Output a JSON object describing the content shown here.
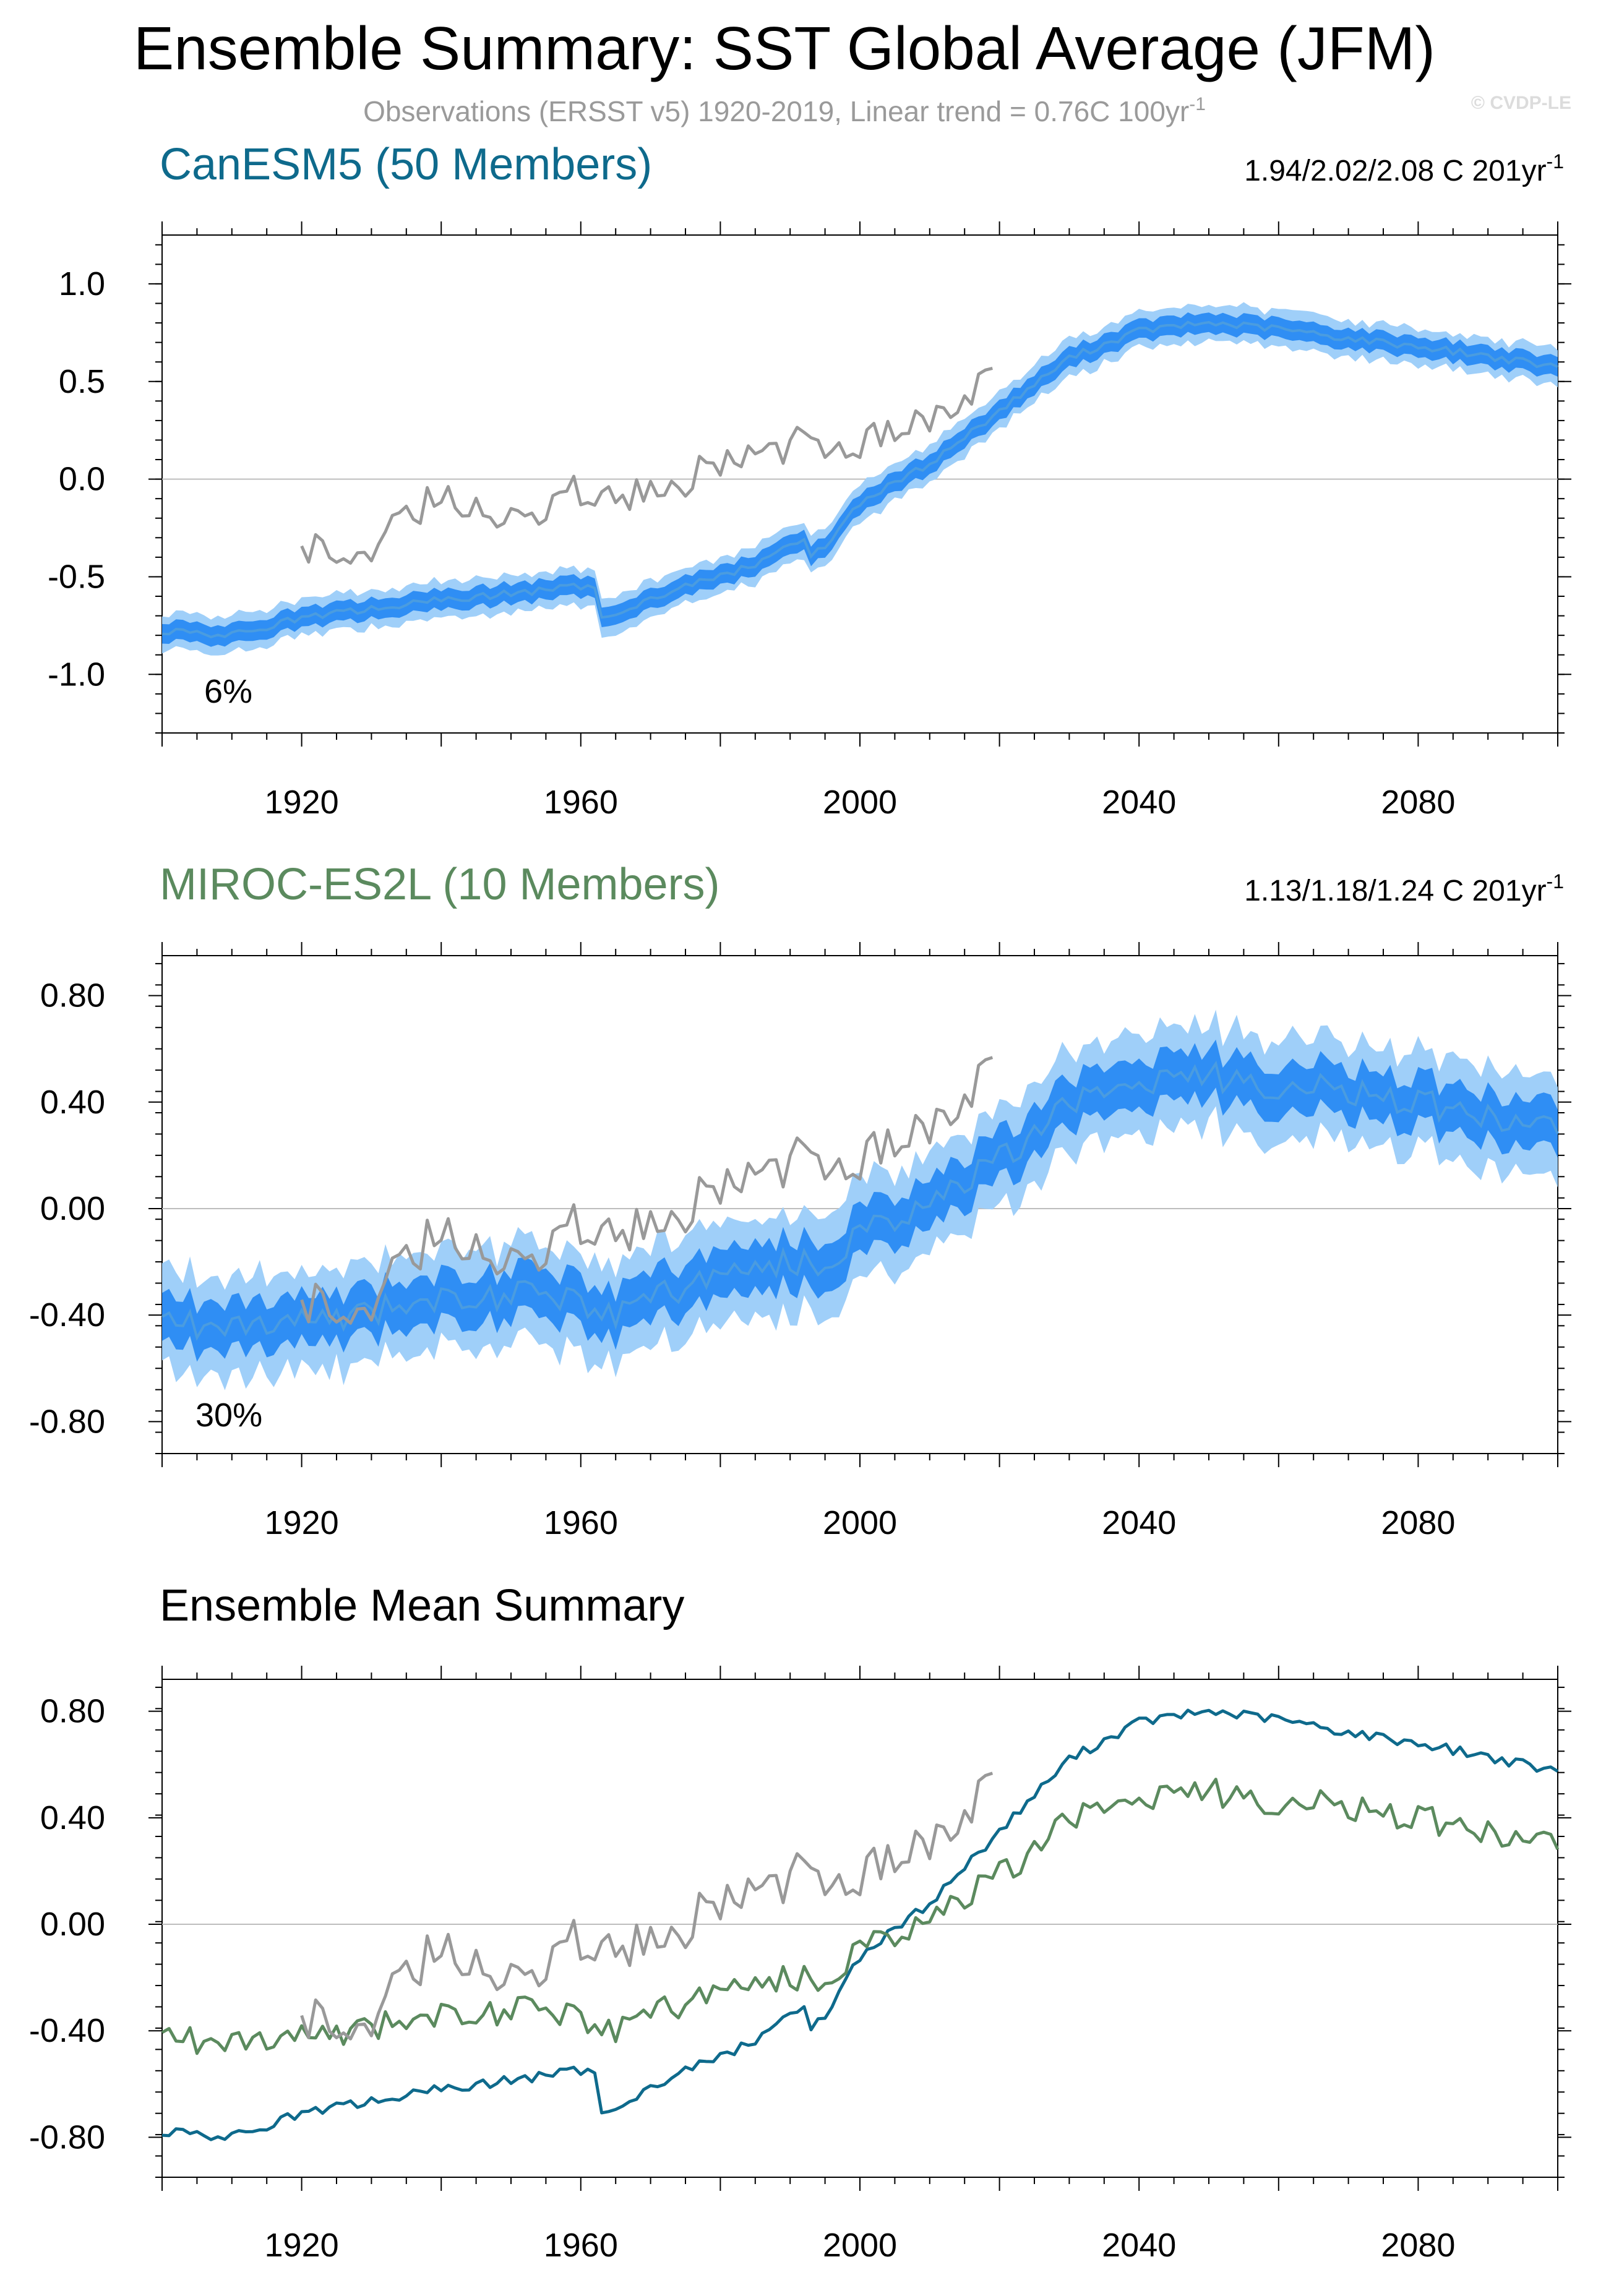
{
  "header": {
    "title": "Ensemble Summary: SST Global Average (JFM)",
    "subtitle": "Observations (ERSST v5) 1920-2019, Linear trend = 0.76C 100yr",
    "subtitle_sup": "-1",
    "credit": "© CVDP-LE"
  },
  "colors": {
    "canesm5": "#0e6a8c",
    "miroc": "#5b8a5e",
    "obs": "#999999",
    "ensemble_dark": "#2f8ef4",
    "ensemble_light": "#9fcff9",
    "ensemble_mean_line": "#4a9ce0"
  },
  "panels": [
    {
      "title": "CanESM5 (50 Members)",
      "trend": "1.94/2.02/2.08 C 201yr",
      "trend_sup": "-1",
      "percent": "6%"
    },
    {
      "title": "MIROC-ES2L (10 Members)",
      "trend": "1.13/1.18/1.24 C 201yr",
      "trend_sup": "-1",
      "percent": "30%"
    },
    {
      "title": "Ensemble Mean Summary"
    }
  ],
  "chart_data": [
    {
      "type": "area",
      "title": "CanESM5 (50 Members)",
      "x_ticks": [
        "1920",
        "1960",
        "2000",
        "2040",
        "2080"
      ],
      "y_ticks": [
        "1.0",
        "0.5",
        "0.0",
        "-0.5",
        "-1.0"
      ],
      "xlim": [
        1900,
        2100
      ],
      "ylim": [
        -1.3,
        1.25
      ],
      "ensemble_mean_knots": [
        [
          1900,
          -0.78
        ],
        [
          1910,
          -0.8
        ],
        [
          1920,
          -0.71
        ],
        [
          1940,
          -0.62
        ],
        [
          1960,
          -0.55
        ],
        [
          1962,
          -0.56
        ],
        [
          1963,
          -0.7
        ],
        [
          1965,
          -0.68
        ],
        [
          1975,
          -0.55
        ],
        [
          1985,
          -0.44
        ],
        [
          1990,
          -0.33
        ],
        [
          1992,
          -0.3
        ],
        [
          1993,
          -0.4
        ],
        [
          1995,
          -0.34
        ],
        [
          2000,
          -0.12
        ],
        [
          2010,
          0.08
        ],
        [
          2020,
          0.35
        ],
        [
          2030,
          0.62
        ],
        [
          2040,
          0.76
        ],
        [
          2050,
          0.8
        ],
        [
          2060,
          0.77
        ],
        [
          2070,
          0.72
        ],
        [
          2080,
          0.68
        ],
        [
          2090,
          0.63
        ],
        [
          2100,
          0.57
        ]
      ],
      "inner_spread": 0.05,
      "outer_spread": 0.08,
      "observations_knots": [
        [
          1920,
          -0.36
        ],
        [
          1925,
          -0.38
        ],
        [
          1930,
          -0.33
        ],
        [
          1935,
          -0.2
        ],
        [
          1940,
          -0.08
        ],
        [
          1945,
          -0.12
        ],
        [
          1950,
          -0.2
        ],
        [
          1955,
          -0.15
        ],
        [
          1960,
          -0.05
        ],
        [
          1965,
          -0.12
        ],
        [
          1970,
          -0.02
        ],
        [
          1975,
          0.0
        ],
        [
          1980,
          0.08
        ],
        [
          1985,
          0.12
        ],
        [
          1990,
          0.18
        ],
        [
          1995,
          0.2
        ],
        [
          2000,
          0.2
        ],
        [
          2005,
          0.25
        ],
        [
          2010,
          0.28
        ],
        [
          2015,
          0.45
        ],
        [
          2019,
          0.5
        ]
      ],
      "observations_endpoints": {
        "start_year": 1920,
        "end_year": 2019
      }
    },
    {
      "type": "area",
      "title": "MIROC-ES2L (10 Members)",
      "x_ticks": [
        "1920",
        "1960",
        "2000",
        "2040",
        "2080"
      ],
      "y_ticks": [
        "0.80",
        "0.40",
        "0.00",
        "-0.40",
        "-0.80"
      ],
      "xlim": [
        1900,
        2100
      ],
      "ylim": [
        -0.92,
        0.95
      ],
      "ensemble_mean_knots": [
        [
          1900,
          -0.42
        ],
        [
          1910,
          -0.45
        ],
        [
          1920,
          -0.42
        ],
        [
          1940,
          -0.34
        ],
        [
          1960,
          -0.32
        ],
        [
          1963,
          -0.42
        ],
        [
          1970,
          -0.33
        ],
        [
          1980,
          -0.25
        ],
        [
          1990,
          -0.2
        ],
        [
          1995,
          -0.22
        ],
        [
          2000,
          -0.08
        ],
        [
          2010,
          0.02
        ],
        [
          2020,
          0.18
        ],
        [
          2030,
          0.4
        ],
        [
          2040,
          0.48
        ],
        [
          2050,
          0.5
        ],
        [
          2060,
          0.46
        ],
        [
          2070,
          0.44
        ],
        [
          2080,
          0.4
        ],
        [
          2090,
          0.34
        ],
        [
          2100,
          0.3
        ]
      ],
      "inner_spread": 0.09,
      "outer_spread": 0.16,
      "observations_knots": [
        [
          1920,
          -0.36
        ],
        [
          1925,
          -0.38
        ],
        [
          1930,
          -0.33
        ],
        [
          1935,
          -0.2
        ],
        [
          1940,
          -0.08
        ],
        [
          1945,
          -0.12
        ],
        [
          1950,
          -0.2
        ],
        [
          1955,
          -0.15
        ],
        [
          1960,
          -0.05
        ],
        [
          1965,
          -0.12
        ],
        [
          1970,
          -0.02
        ],
        [
          1975,
          0.0
        ],
        [
          1980,
          0.08
        ],
        [
          1985,
          0.12
        ],
        [
          1990,
          0.18
        ],
        [
          1995,
          0.2
        ],
        [
          2000,
          0.2
        ],
        [
          2005,
          0.25
        ],
        [
          2010,
          0.28
        ],
        [
          2015,
          0.45
        ],
        [
          2019,
          0.5
        ]
      ],
      "observations_endpoints": {
        "start_year": 1920,
        "end_year": 2019
      }
    },
    {
      "type": "line",
      "title": "Ensemble Mean Summary",
      "x_ticks": [
        "1920",
        "1960",
        "2000",
        "2040",
        "2080"
      ],
      "y_ticks": [
        "0.80",
        "0.40",
        "0.00",
        "-0.40",
        "-0.80"
      ],
      "xlim": [
        1900,
        2100
      ],
      "ylim": [
        -0.95,
        0.92
      ],
      "series": [
        {
          "name": "CanESM5",
          "knots": [
            [
              1900,
              -0.78
            ],
            [
              1910,
              -0.8
            ],
            [
              1920,
              -0.71
            ],
            [
              1940,
              -0.62
            ],
            [
              1960,
              -0.55
            ],
            [
              1962,
              -0.56
            ],
            [
              1963,
              -0.7
            ],
            [
              1965,
              -0.68
            ],
            [
              1975,
              -0.55
            ],
            [
              1985,
              -0.44
            ],
            [
              1990,
              -0.33
            ],
            [
              1992,
              -0.3
            ],
            [
              1993,
              -0.4
            ],
            [
              1995,
              -0.34
            ],
            [
              2000,
              -0.12
            ],
            [
              2010,
              0.08
            ],
            [
              2020,
              0.35
            ],
            [
              2030,
              0.62
            ],
            [
              2040,
              0.76
            ],
            [
              2050,
              0.8
            ],
            [
              2060,
              0.77
            ],
            [
              2070,
              0.72
            ],
            [
              2080,
              0.68
            ],
            [
              2090,
              0.63
            ],
            [
              2100,
              0.57
            ]
          ]
        },
        {
          "name": "MIROC-ES2L",
          "knots": [
            [
              1900,
              -0.42
            ],
            [
              1910,
              -0.45
            ],
            [
              1920,
              -0.42
            ],
            [
              1940,
              -0.34
            ],
            [
              1960,
              -0.32
            ],
            [
              1963,
              -0.42
            ],
            [
              1970,
              -0.33
            ],
            [
              1980,
              -0.25
            ],
            [
              1990,
              -0.2
            ],
            [
              1995,
              -0.22
            ],
            [
              2000,
              -0.08
            ],
            [
              2010,
              0.02
            ],
            [
              2020,
              0.18
            ],
            [
              2030,
              0.4
            ],
            [
              2040,
              0.48
            ],
            [
              2050,
              0.5
            ],
            [
              2060,
              0.46
            ],
            [
              2070,
              0.44
            ],
            [
              2080,
              0.4
            ],
            [
              2090,
              0.34
            ],
            [
              2100,
              0.3
            ]
          ]
        },
        {
          "name": "Observations",
          "knots": [
            [
              1920,
              -0.36
            ],
            [
              1925,
              -0.38
            ],
            [
              1930,
              -0.33
            ],
            [
              1935,
              -0.2
            ],
            [
              1940,
              -0.08
            ],
            [
              1945,
              -0.12
            ],
            [
              1950,
              -0.2
            ],
            [
              1955,
              -0.15
            ],
            [
              1960,
              -0.05
            ],
            [
              1965,
              -0.12
            ],
            [
              1970,
              -0.02
            ],
            [
              1975,
              0.0
            ],
            [
              1980,
              0.08
            ],
            [
              1985,
              0.12
            ],
            [
              1990,
              0.18
            ],
            [
              1995,
              0.2
            ],
            [
              2000,
              0.2
            ],
            [
              2005,
              0.25
            ],
            [
              2010,
              0.28
            ],
            [
              2015,
              0.45
            ],
            [
              2019,
              0.5
            ]
          ]
        }
      ]
    }
  ]
}
